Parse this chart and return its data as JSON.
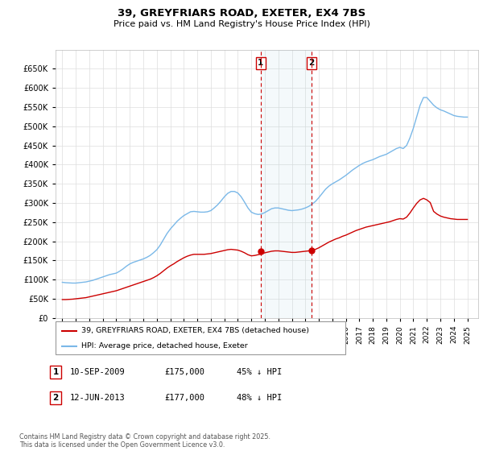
{
  "title": "39, GREYFRIARS ROAD, EXETER, EX4 7BS",
  "subtitle": "Price paid vs. HM Land Registry's House Price Index (HPI)",
  "ylim": [
    0,
    700000
  ],
  "yticks": [
    0,
    50000,
    100000,
    150000,
    200000,
    250000,
    300000,
    350000,
    400000,
    450000,
    500000,
    550000,
    600000,
    650000
  ],
  "xlim_start": 1994.5,
  "xlim_end": 2025.8,
  "background_color": "#ffffff",
  "grid_color": "#dddddd",
  "hpi_color": "#7ab8e8",
  "price_color": "#cc0000",
  "sale1_date": 2009.69,
  "sale1_price": 175000,
  "sale2_date": 2013.45,
  "sale2_price": 177000,
  "legend_house": "39, GREYFRIARS ROAD, EXETER, EX4 7BS (detached house)",
  "legend_hpi": "HPI: Average price, detached house, Exeter",
  "annotation1_label": "1",
  "annotation1_date": "10-SEP-2009",
  "annotation1_price": "£175,000",
  "annotation1_hpi": "45% ↓ HPI",
  "annotation2_label": "2",
  "annotation2_date": "12-JUN-2013",
  "annotation2_price": "£177,000",
  "annotation2_hpi": "48% ↓ HPI",
  "footer": "Contains HM Land Registry data © Crown copyright and database right 2025.\nThis data is licensed under the Open Government Licence v3.0.",
  "hpi_data_x": [
    1995.0,
    1995.25,
    1995.5,
    1995.75,
    1996.0,
    1996.25,
    1996.5,
    1996.75,
    1997.0,
    1997.25,
    1997.5,
    1997.75,
    1998.0,
    1998.25,
    1998.5,
    1998.75,
    1999.0,
    1999.25,
    1999.5,
    1999.75,
    2000.0,
    2000.25,
    2000.5,
    2000.75,
    2001.0,
    2001.25,
    2001.5,
    2001.75,
    2002.0,
    2002.25,
    2002.5,
    2002.75,
    2003.0,
    2003.25,
    2003.5,
    2003.75,
    2004.0,
    2004.25,
    2004.5,
    2004.75,
    2005.0,
    2005.25,
    2005.5,
    2005.75,
    2006.0,
    2006.25,
    2006.5,
    2006.75,
    2007.0,
    2007.25,
    2007.5,
    2007.75,
    2008.0,
    2008.25,
    2008.5,
    2008.75,
    2009.0,
    2009.25,
    2009.5,
    2009.75,
    2010.0,
    2010.25,
    2010.5,
    2010.75,
    2011.0,
    2011.25,
    2011.5,
    2011.75,
    2012.0,
    2012.25,
    2012.5,
    2012.75,
    2013.0,
    2013.25,
    2013.5,
    2013.75,
    2014.0,
    2014.25,
    2014.5,
    2014.75,
    2015.0,
    2015.25,
    2015.5,
    2015.75,
    2016.0,
    2016.25,
    2016.5,
    2016.75,
    2017.0,
    2017.25,
    2017.5,
    2017.75,
    2018.0,
    2018.25,
    2018.5,
    2018.75,
    2019.0,
    2019.25,
    2019.5,
    2019.75,
    2020.0,
    2020.25,
    2020.5,
    2020.75,
    2021.0,
    2021.25,
    2021.5,
    2021.75,
    2022.0,
    2022.25,
    2022.5,
    2022.75,
    2023.0,
    2023.25,
    2023.5,
    2023.75,
    2024.0,
    2024.25,
    2024.5,
    2024.75,
    2025.0
  ],
  "hpi_data_y": [
    93000,
    92000,
    91500,
    91000,
    91000,
    92000,
    93000,
    94000,
    96000,
    98000,
    101000,
    104000,
    107000,
    110000,
    113000,
    115000,
    117000,
    122000,
    128000,
    135000,
    141000,
    145000,
    148000,
    151000,
    154000,
    158000,
    163000,
    170000,
    178000,
    190000,
    205000,
    220000,
    232000,
    242000,
    252000,
    260000,
    267000,
    272000,
    277000,
    278000,
    277000,
    276000,
    276000,
    277000,
    280000,
    287000,
    295000,
    305000,
    316000,
    325000,
    330000,
    330000,
    326000,
    316000,
    302000,
    287000,
    276000,
    272000,
    270000,
    271000,
    275000,
    280000,
    285000,
    287000,
    287000,
    285000,
    283000,
    281000,
    280000,
    281000,
    282000,
    284000,
    287000,
    291000,
    297000,
    304000,
    314000,
    325000,
    336000,
    344000,
    350000,
    355000,
    360000,
    366000,
    372000,
    379000,
    386000,
    392000,
    398000,
    403000,
    407000,
    410000,
    413000,
    417000,
    421000,
    424000,
    427000,
    432000,
    437000,
    442000,
    445000,
    442000,
    450000,
    470000,
    495000,
    525000,
    555000,
    575000,
    575000,
    565000,
    555000,
    548000,
    543000,
    540000,
    536000,
    532000,
    528000,
    526000,
    525000,
    524000,
    524000
  ],
  "price_data_x": [
    1995.0,
    1995.25,
    1995.5,
    1995.75,
    1996.0,
    1996.25,
    1996.5,
    1996.75,
    1997.0,
    1997.25,
    1997.5,
    1997.75,
    1998.0,
    1998.25,
    1998.5,
    1998.75,
    1999.0,
    1999.25,
    1999.5,
    1999.75,
    2000.0,
    2000.25,
    2000.5,
    2000.75,
    2001.0,
    2001.25,
    2001.5,
    2001.75,
    2002.0,
    2002.25,
    2002.5,
    2002.75,
    2003.0,
    2003.25,
    2003.5,
    2003.75,
    2004.0,
    2004.25,
    2004.5,
    2004.75,
    2005.0,
    2005.25,
    2005.5,
    2005.75,
    2006.0,
    2006.25,
    2006.5,
    2006.75,
    2007.0,
    2007.25,
    2007.5,
    2007.75,
    2008.0,
    2008.25,
    2008.5,
    2008.75,
    2009.0,
    2009.25,
    2009.5,
    2009.75,
    2010.0,
    2010.25,
    2010.5,
    2010.75,
    2011.0,
    2011.25,
    2011.5,
    2011.75,
    2012.0,
    2012.25,
    2012.5,
    2012.75,
    2013.0,
    2013.25,
    2013.5,
    2013.75,
    2014.0,
    2014.25,
    2014.5,
    2014.75,
    2015.0,
    2015.25,
    2015.5,
    2015.75,
    2016.0,
    2016.25,
    2016.5,
    2016.75,
    2017.0,
    2017.25,
    2017.5,
    2017.75,
    2018.0,
    2018.25,
    2018.5,
    2018.75,
    2019.0,
    2019.25,
    2019.5,
    2019.75,
    2020.0,
    2020.25,
    2020.5,
    2020.75,
    2021.0,
    2021.25,
    2021.5,
    2021.75,
    2022.0,
    2022.25,
    2022.5,
    2022.75,
    2023.0,
    2023.25,
    2023.5,
    2023.75,
    2024.0,
    2024.25,
    2024.5,
    2024.75,
    2025.0
  ],
  "price_data_y": [
    48000,
    48000,
    48500,
    49000,
    50000,
    51000,
    52000,
    53000,
    55000,
    57000,
    59000,
    61000,
    63000,
    65000,
    67000,
    69000,
    71000,
    74000,
    77000,
    80000,
    83000,
    86000,
    89000,
    92000,
    95000,
    98000,
    101000,
    105000,
    110000,
    116000,
    123000,
    130000,
    136000,
    141000,
    147000,
    152000,
    157000,
    161000,
    164000,
    166000,
    166000,
    166000,
    166000,
    167000,
    168000,
    170000,
    172000,
    174000,
    176000,
    178000,
    179000,
    178000,
    177000,
    174000,
    170000,
    165000,
    162000,
    163000,
    165000,
    167000,
    170000,
    172000,
    174000,
    175000,
    175000,
    174000,
    173000,
    172000,
    171000,
    171000,
    172000,
    173000,
    174000,
    175000,
    177000,
    179000,
    183000,
    188000,
    193000,
    198000,
    202000,
    206000,
    209000,
    213000,
    216000,
    220000,
    224000,
    228000,
    231000,
    234000,
    237000,
    239000,
    241000,
    243000,
    245000,
    247000,
    249000,
    251000,
    254000,
    257000,
    259000,
    258000,
    263000,
    274000,
    287000,
    299000,
    308000,
    312000,
    308000,
    301000,
    278000,
    271000,
    266000,
    263000,
    261000,
    259000,
    258000,
    257000,
    257000,
    257000,
    257000
  ]
}
